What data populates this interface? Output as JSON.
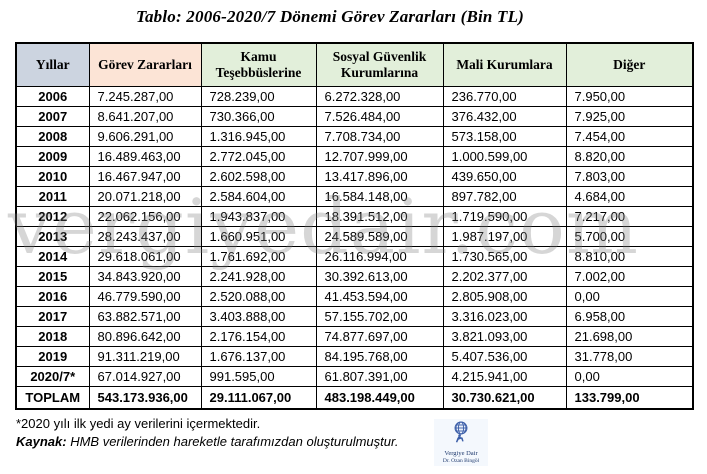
{
  "title": "Tablo: 2006-2020/7 Dönemi Görev Zararları (Bin TL)",
  "watermark": "vergiyedair.com",
  "colors": {
    "year_header_bg": "#ccd4e0",
    "gorev_header_bg": "#fce4d6",
    "green_header_bg": "#e2efda",
    "border": "#000000",
    "logo_text": "#1f3a6e"
  },
  "table": {
    "columns": [
      {
        "label": "Yıllar"
      },
      {
        "label": "Görev Zararları"
      },
      {
        "label": "Kamu Teşebbüslerine"
      },
      {
        "label": "Sosyal Güvenlik Kurumlarına"
      },
      {
        "label": "Mali Kurumlara"
      },
      {
        "label": "Diğer"
      }
    ],
    "rows": [
      {
        "year": "2006",
        "values": [
          "7.245.287,00",
          "728.239,00",
          "6.272.328,00",
          "236.770,00",
          "7.950,00"
        ]
      },
      {
        "year": "2007",
        "values": [
          "8.641.207,00",
          "730.366,00",
          "7.526.484,00",
          "376.432,00",
          "7.925,00"
        ]
      },
      {
        "year": "2008",
        "values": [
          "9.606.291,00",
          "1.316.945,00",
          "7.708.734,00",
          "573.158,00",
          "7.454,00"
        ]
      },
      {
        "year": "2009",
        "values": [
          "16.489.463,00",
          "2.772.045,00",
          "12.707.999,00",
          "1.000.599,00",
          "8.820,00"
        ]
      },
      {
        "year": "2010",
        "values": [
          "16.467.947,00",
          "2.602.598,00",
          "13.417.896,00",
          "439.650,00",
          "7.803,00"
        ]
      },
      {
        "year": "2011",
        "values": [
          "20.071.218,00",
          "2.584.604,00",
          "16.584.148,00",
          "897.782,00",
          "4.684,00"
        ]
      },
      {
        "year": "2012",
        "values": [
          "22.062.156,00",
          "1.943.837,00",
          "18.391.512,00",
          "1.719.590,00",
          "7.217,00"
        ]
      },
      {
        "year": "2013",
        "values": [
          "28.243.437,00",
          "1.660.951,00",
          "24.589.589,00",
          "1.987.197,00",
          "5.700,00"
        ]
      },
      {
        "year": "2014",
        "values": [
          "29.618.061,00",
          "1.761.692,00",
          "26.116.994,00",
          "1.730.565,00",
          "8.810,00"
        ]
      },
      {
        "year": "2015",
        "values": [
          "34.843.920,00",
          "2.241.928,00",
          "30.392.613,00",
          "2.202.377,00",
          "7.002,00"
        ]
      },
      {
        "year": "2016",
        "values": [
          "46.779.590,00",
          "2.520.088,00",
          "41.453.594,00",
          "2.805.908,00",
          "0,00"
        ]
      },
      {
        "year": "2017",
        "values": [
          "63.882.571,00",
          "3.403.888,00",
          "57.155.702,00",
          "3.316.023,00",
          "6.958,00"
        ]
      },
      {
        "year": "2018",
        "values": [
          "80.896.642,00",
          "2.176.154,00",
          "74.877.697,00",
          "3.821.093,00",
          "21.698,00"
        ]
      },
      {
        "year": "2019",
        "values": [
          "91.311.219,00",
          "1.676.137,00",
          "84.195.768,00",
          "5.407.536,00",
          "31.778,00"
        ]
      },
      {
        "year": "2020/7*",
        "values": [
          "67.014.927,00",
          "991.595,00",
          "61.807.391,00",
          "4.215.941,00",
          "0,00"
        ]
      },
      {
        "year": "TOPLAM",
        "values": [
          "543.173.936,00",
          "29.111.067,00",
          "483.198.449,00",
          "30.730.621,00",
          "133.799,00"
        ],
        "bold": true
      }
    ]
  },
  "footnotes": {
    "note": "*2020 yılı ilk yedi ay verilerini içermektedir.",
    "source_label": "Kaynak:",
    "source_text": " HMB verilerinden hareketle tarafımızdan oluşturulmuştur."
  },
  "logo": {
    "line1": "Vergiye Dair",
    "line2": "Dr. Ozan Bingöl"
  }
}
